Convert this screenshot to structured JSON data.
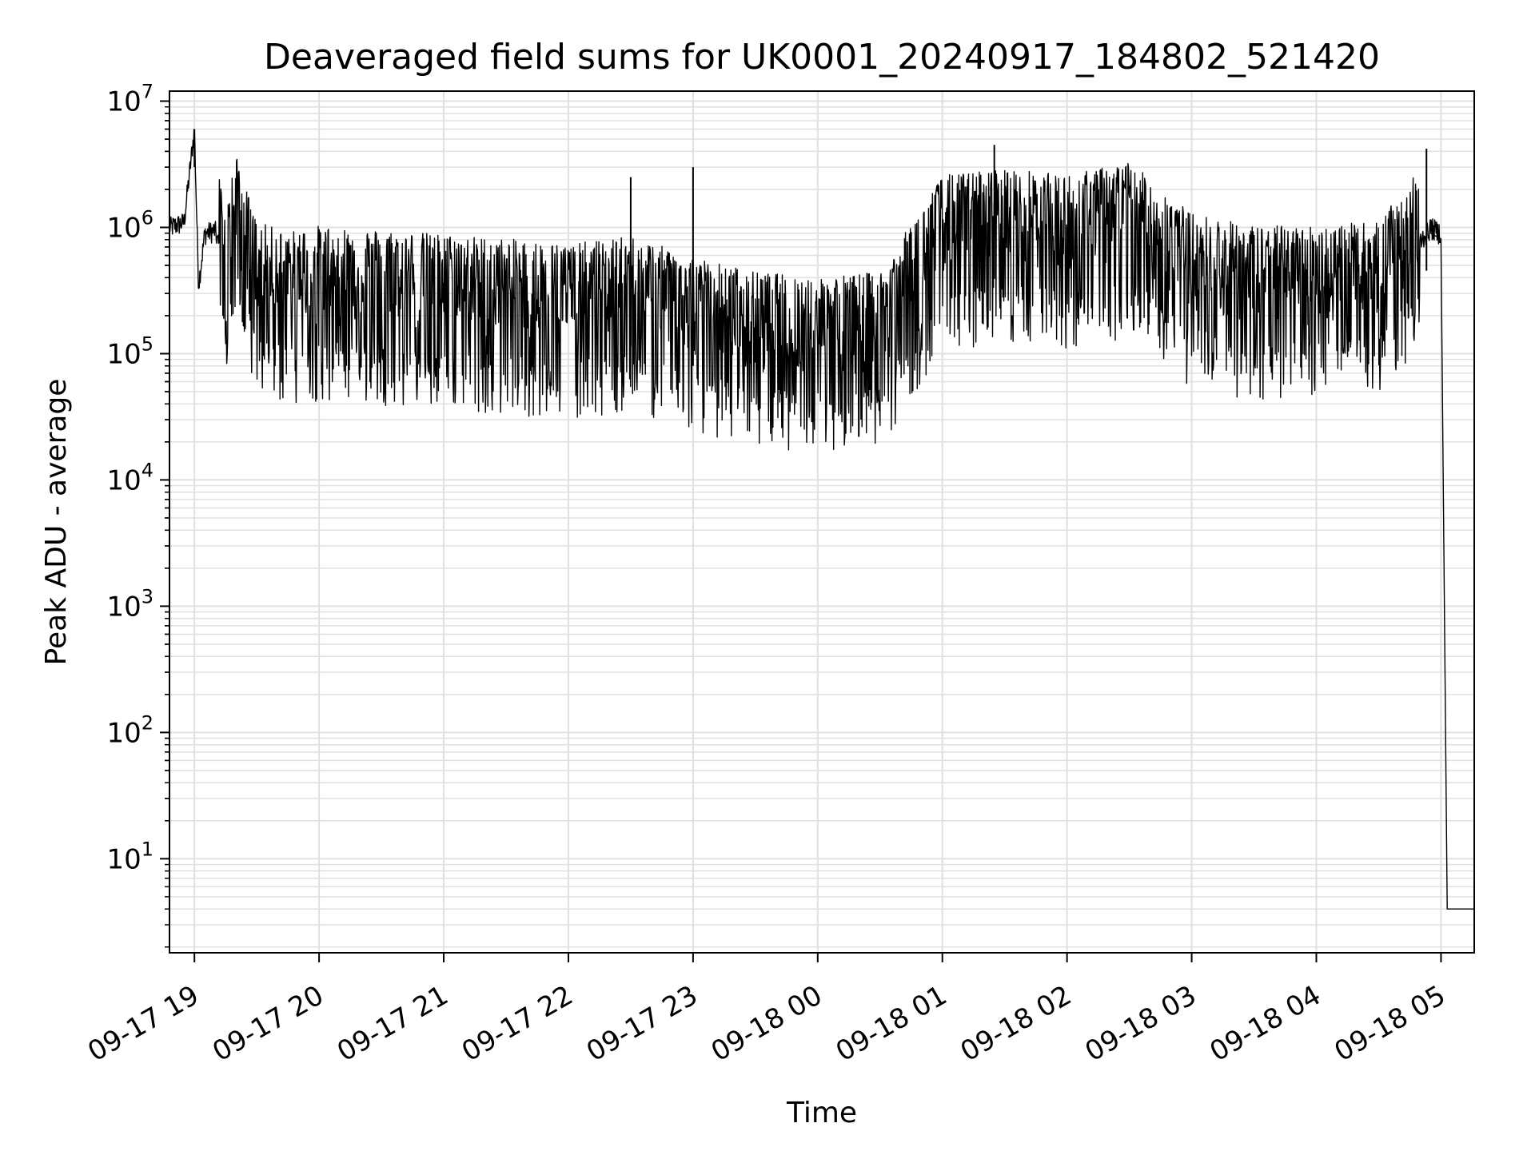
{
  "chart_data": {
    "type": "line",
    "title": "Deaveraged field sums for UK0001_20240917_184802_521420",
    "xlabel": "Time",
    "ylabel": "Peak ADU - average",
    "yscale": "log",
    "ylim": [
      1.8,
      12000000
    ],
    "xlim": [
      "2024-09-17 18:48",
      "2024-09-18 05:16"
    ],
    "grid": true,
    "grid_color": "#e0e0e0",
    "line_color": "#000000",
    "x_ticks": [
      "09-17 19",
      "09-17 20",
      "09-17 21",
      "09-17 22",
      "09-17 23",
      "09-18 00",
      "09-18 01",
      "09-18 02",
      "09-18 03",
      "09-18 04",
      "09-18 05"
    ],
    "y_ticks": [
      {
        "base": "10",
        "exp": "1"
      },
      {
        "base": "10",
        "exp": "2"
      },
      {
        "base": "10",
        "exp": "3"
      },
      {
        "base": "10",
        "exp": "4"
      },
      {
        "base": "10",
        "exp": "5"
      },
      {
        "base": "10",
        "exp": "6"
      },
      {
        "base": "10",
        "exp": "7"
      }
    ],
    "series": [
      {
        "x": [
          "2024-09-17 18:48",
          "2024-09-17 18:55",
          "2024-09-17 19:00",
          "2024-09-17 19:02",
          "2024-09-17 19:05",
          "2024-09-17 19:10",
          "2024-09-17 19:15",
          "2024-09-17 19:20",
          "2024-09-17 19:30",
          "2024-09-17 19:45",
          "2024-09-17 20:00",
          "2024-09-17 20:30",
          "2024-09-17 21:00",
          "2024-09-17 21:30",
          "2024-09-17 22:00",
          "2024-09-17 22:30",
          "2024-09-17 23:00",
          "2024-09-17 23:30",
          "2024-09-18 00:00",
          "2024-09-18 00:30",
          "2024-09-18 01:00",
          "2024-09-18 01:30",
          "2024-09-18 02:00",
          "2024-09-18 02:30",
          "2024-09-18 03:00",
          "2024-09-18 03:30",
          "2024-09-18 04:00",
          "2024-09-18 04:30",
          "2024-09-18 04:55",
          "2024-09-18 05:00",
          "2024-09-18 05:03",
          "2024-09-18 05:16"
        ],
        "y": [
          1000000,
          1100000,
          6000000,
          350000,
          900000,
          950000,
          400000,
          1000000,
          300000,
          250000,
          280000,
          260000,
          240000,
          220000,
          200000,
          230000,
          160000,
          120000,
          110000,
          120000,
          700000,
          800000,
          700000,
          900000,
          350000,
          280000,
          280000,
          300000,
          1000000,
          900000,
          4,
          4
        ]
      }
    ],
    "annotations_peaks": [
      {
        "x": "2024-09-17 19:00",
        "y": 6000000
      },
      {
        "x": "2024-09-18 01:25",
        "y": 4500000
      },
      {
        "x": "2024-09-18 04:53",
        "y": 4200000
      },
      {
        "x": "2024-09-17 23:00",
        "y": 3000000
      },
      {
        "x": "2024-09-17 22:30",
        "y": 2500000
      }
    ]
  }
}
